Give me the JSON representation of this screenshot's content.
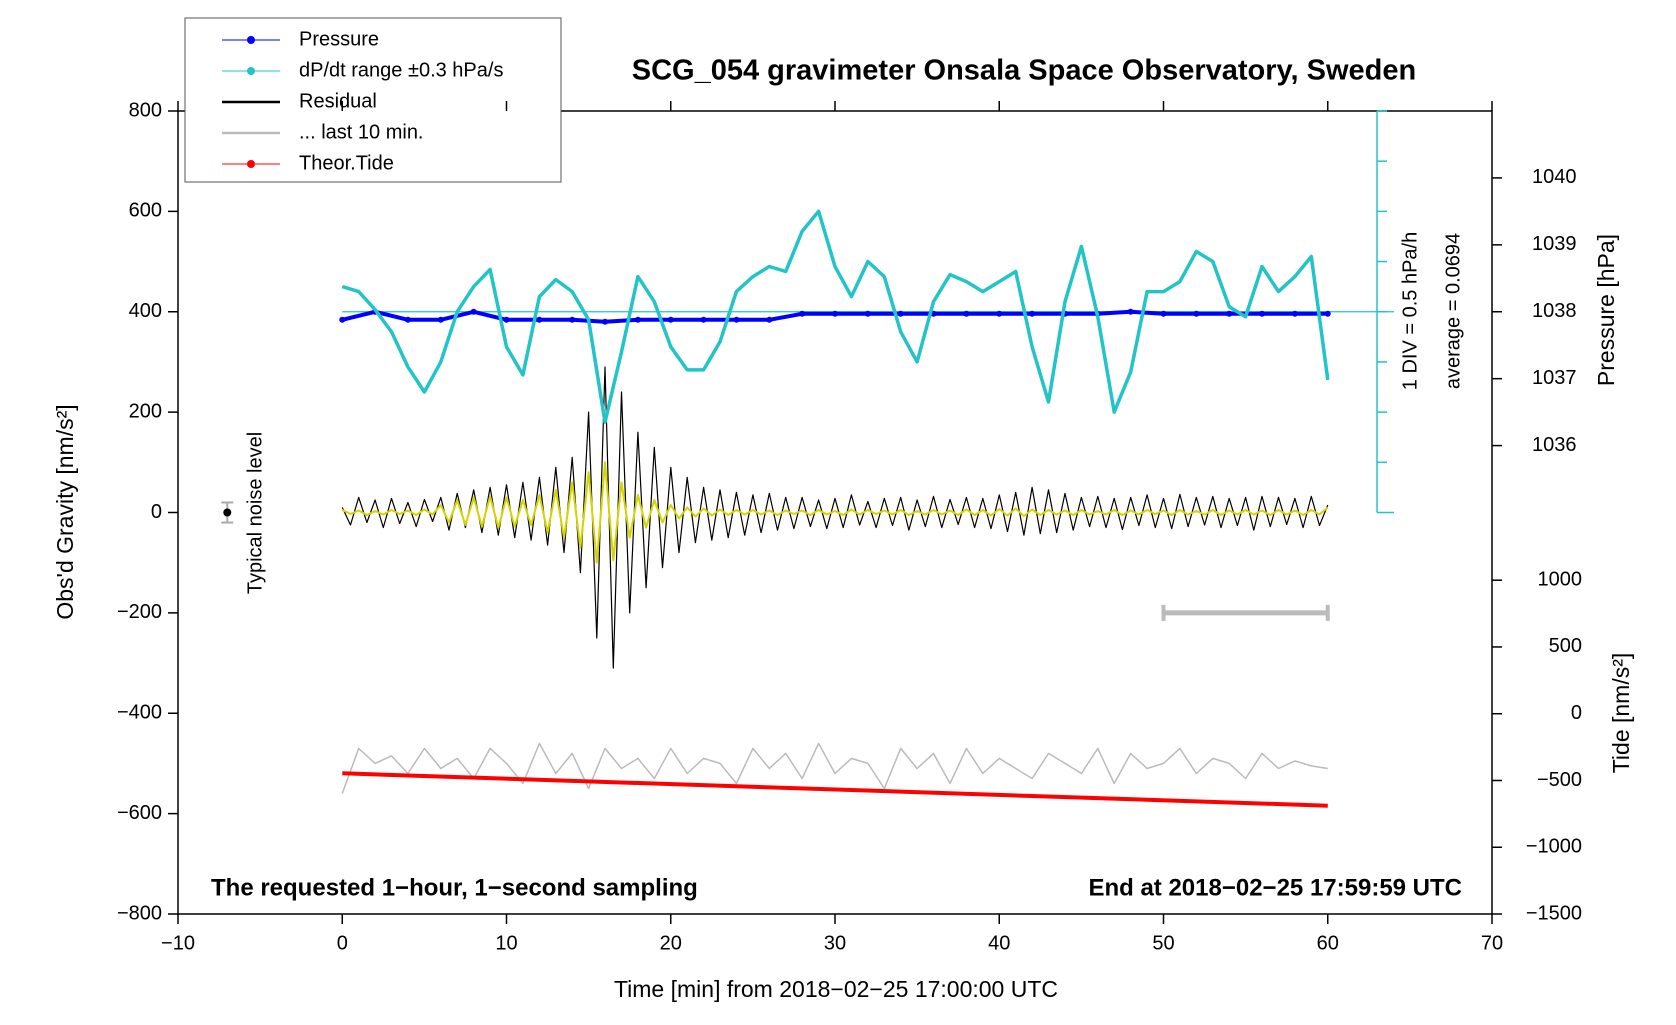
{
  "chart_data": {
    "type": "line",
    "title": "SCG_054 gravimeter Onsala Space Observatory, Sweden",
    "x_label": "Time [min] from 2018−02−25 17:00:00 UTC",
    "y_label": "Obs'd Gravity [nm/s²]",
    "y2_label": "Pressure [hPa]",
    "y3_label": "Tide [nm/s²]",
    "annotations": {
      "left": "The requested 1−hour, 1−second sampling",
      "right": "End at 2018−02−25 17:59:59 UTC",
      "div": "1 DIV = 0.5 hPa/h",
      "average": "average = 0.0694",
      "average_value": 0.0694,
      "y4_axis_x": 63,
      "noise": {
        "label": "Typical noise level",
        "x": -7,
        "y": 0,
        "error": 20
      },
      "last10_span": {
        "x": [
          50,
          60
        ],
        "y": -200
      }
    },
    "xlim": [
      -10,
      70
    ],
    "xticks": [
      {
        "value": -10,
        "label": "−10"
      },
      0,
      10,
      20,
      30,
      40,
      50,
      60,
      70
    ],
    "ylim": [
      -800,
      800
    ],
    "yticks": [
      {
        "value": -800,
        "label": "−800"
      },
      {
        "value": -600,
        "label": "−600"
      },
      {
        "value": -400,
        "label": "−400"
      },
      {
        "value": -200,
        "label": "−200"
      },
      0,
      200,
      400,
      600,
      800
    ],
    "y2lim": [
      1029,
      1041
    ],
    "y2ticks": [
      1036,
      1037,
      1038,
      1039,
      1040
    ],
    "y3lim": [
      -1500,
      4514
    ],
    "y3ticks": [
      {
        "value": -1500,
        "label": "−1500"
      },
      {
        "value": -1000,
        "label": "−1000"
      },
      {
        "value": -500,
        "label": "−500"
      },
      0,
      500,
      1000
    ],
    "y4lim": [
      -1.9306,
      2.0694
    ],
    "y4ticks": [
      -1.9306,
      -1.4306,
      -0.9306,
      -0.4306,
      0.0694,
      0.5694,
      1.0694,
      1.5694,
      2.0694
    ],
    "series": [
      {
        "name": "Pressure",
        "color": "#0000ff",
        "axis": "y2",
        "markers": true,
        "x": [
          0,
          2,
          4,
          6,
          8,
          10,
          12,
          14,
          16,
          18,
          20,
          22,
          24,
          26,
          28,
          30,
          32,
          34,
          36,
          38,
          40,
          42,
          44,
          46,
          48,
          50,
          52,
          54,
          56,
          58,
          60
        ],
        "values": [
          1037.88,
          1038.0,
          1037.88,
          1037.88,
          1038.0,
          1037.88,
          1037.88,
          1037.88,
          1037.85,
          1037.88,
          1037.88,
          1037.88,
          1037.88,
          1037.88,
          1037.97,
          1037.97,
          1037.97,
          1037.97,
          1037.97,
          1037.97,
          1037.97,
          1037.97,
          1037.97,
          1037.97,
          1038.0,
          1037.97,
          1037.97,
          1037.97,
          1037.97,
          1037.97,
          1037.97
        ]
      },
      {
        "name": "dP/dt range ±0.3 hPa/s",
        "color": "#22c4c8",
        "axis": "y4",
        "markers": false,
        "legend_marker": true,
        "x": [
          0,
          1,
          2,
          3,
          4,
          5,
          6,
          7,
          8,
          9,
          10,
          11,
          12,
          13,
          14,
          15,
          16,
          17,
          18,
          19,
          20,
          21,
          22,
          23,
          24,
          25,
          26,
          27,
          28,
          29,
          30,
          31,
          32,
          33,
          34,
          35,
          36,
          37,
          38,
          39,
          40,
          41,
          42,
          43,
          44,
          45,
          46,
          47,
          48,
          49,
          50,
          51,
          52,
          53,
          54,
          55,
          56,
          57,
          58,
          59,
          60
        ],
        "values": [
          0.32,
          0.27,
          0.09,
          -0.13,
          -0.48,
          -0.73,
          -0.43,
          0.07,
          0.32,
          0.49,
          -0.28,
          -0.56,
          0.22,
          0.39,
          0.27,
          -0.01,
          -1.03,
          -0.33,
          0.42,
          0.17,
          -0.28,
          -0.51,
          -0.51,
          -0.23,
          0.27,
          0.42,
          0.52,
          0.47,
          0.87,
          1.07,
          0.52,
          0.22,
          0.57,
          0.42,
          -0.13,
          -0.43,
          0.17,
          0.44,
          0.37,
          0.27,
          0.37,
          0.47,
          -0.28,
          -0.83,
          0.17,
          0.72,
          0.02,
          -0.93,
          -0.53,
          0.27,
          0.27,
          0.37,
          0.67,
          0.57,
          0.12,
          0.02,
          0.52,
          0.27,
          0.42,
          0.62,
          -0.61
        ]
      },
      {
        "name": "Residual",
        "color": "#000000",
        "axis": "y",
        "markers": false,
        "x": [
          0,
          0.5,
          1,
          1.5,
          2,
          2.5,
          3,
          3.5,
          4,
          4.5,
          5,
          5.5,
          6,
          6.5,
          7,
          7.5,
          8,
          8.5,
          9,
          9.5,
          10,
          10.5,
          11,
          11.5,
          12,
          12.5,
          13,
          13.5,
          14,
          14.5,
          15,
          15.5,
          16,
          16.5,
          17,
          17.5,
          18,
          18.5,
          19,
          19.5,
          20,
          20.5,
          21,
          21.5,
          22,
          22.5,
          23,
          23.5,
          24,
          24.5,
          25,
          25.5,
          26,
          26.5,
          27,
          27.5,
          28,
          28.5,
          29,
          29.5,
          30,
          30.5,
          31,
          31.5,
          32,
          32.5,
          33,
          33.5,
          34,
          34.5,
          35,
          35.5,
          36,
          36.5,
          37,
          37.5,
          38,
          38.5,
          39,
          39.5,
          40,
          40.5,
          41,
          41.5,
          42,
          42.5,
          43,
          43.5,
          44,
          44.5,
          45,
          45.5,
          46,
          46.5,
          47,
          47.5,
          48,
          48.5,
          49,
          49.5,
          50,
          50.5,
          51,
          51.5,
          52,
          52.5,
          53,
          53.5,
          54,
          54.5,
          55,
          55.5,
          56,
          56.5,
          57,
          57.5,
          58,
          58.5,
          59,
          59.5,
          60
        ],
        "values": [
          10,
          -25,
          30,
          -20,
          25,
          -30,
          28,
          -22,
          20,
          -28,
          26,
          -18,
          30,
          -35,
          38,
          -30,
          45,
          -40,
          50,
          -45,
          55,
          -50,
          60,
          -55,
          70,
          -65,
          90,
          -80,
          110,
          -120,
          200,
          -250,
          290,
          -310,
          240,
          -200,
          160,
          -150,
          130,
          -110,
          90,
          -80,
          70,
          -60,
          50,
          -55,
          45,
          -50,
          40,
          -45,
          35,
          -40,
          38,
          -35,
          30,
          -32,
          30,
          -28,
          25,
          -32,
          28,
          -30,
          35,
          -25,
          22,
          -30,
          28,
          -26,
          30,
          -35,
          25,
          -28,
          32,
          -30,
          26,
          -24,
          30,
          -30,
          28,
          -32,
          35,
          -38,
          40,
          -45,
          50,
          -42,
          45,
          -40,
          38,
          -35,
          30,
          -28,
          32,
          -30,
          28,
          -34,
          30,
          -26,
          35,
          -30,
          28,
          -32,
          36,
          -28,
          30,
          -25,
          32,
          -30,
          28,
          -26,
          30,
          -35,
          32,
          -28,
          30,
          -24,
          28,
          -30,
          32,
          -26,
          15
        ]
      },
      {
        "name": "... last 10 min.",
        "color": "#bbbbbb",
        "axis": "y",
        "markers": false,
        "x": [
          0,
          1,
          2,
          3,
          4,
          5,
          6,
          7,
          8,
          9,
          10,
          11,
          12,
          13,
          14,
          15,
          16,
          17,
          18,
          19,
          20,
          21,
          22,
          23,
          24,
          25,
          26,
          27,
          28,
          29,
          30,
          31,
          32,
          33,
          34,
          35,
          36,
          37,
          38,
          39,
          40,
          41,
          42,
          43,
          44,
          45,
          46,
          47,
          48,
          49,
          50,
          51,
          52,
          53,
          54,
          55,
          56,
          57,
          58,
          59,
          60
        ],
        "values": [
          -560,
          -470,
          -500,
          -485,
          -520,
          -470,
          -510,
          -490,
          -530,
          -470,
          -500,
          -540,
          -460,
          -520,
          -480,
          -550,
          -470,
          -510,
          -490,
          -530,
          -470,
          -520,
          -490,
          -500,
          -540,
          -470,
          -510,
          -480,
          -530,
          -460,
          -520,
          -490,
          -500,
          -550,
          -470,
          -510,
          -480,
          -540,
          -470,
          -520,
          -490,
          -510,
          -530,
          -480,
          -500,
          -520,
          -470,
          -540,
          -480,
          -510,
          -500,
          -470,
          -520,
          -490,
          -500,
          -530,
          -480,
          -510,
          -495,
          -505,
          -510
        ]
      },
      {
        "name": "Theor.Tide",
        "color": "#ff0000",
        "axis": "y3",
        "markers": false,
        "legend_marker": true,
        "x": [
          0,
          60
        ],
        "values": [
          -446,
          -689
        ]
      },
      {
        "color": "#d4d400",
        "axis": "y",
        "markers": false,
        "x": [
          0,
          0.5,
          1,
          1.5,
          2,
          2.5,
          3,
          3.5,
          4,
          4.5,
          5,
          5.5,
          6,
          6.5,
          7,
          7.5,
          8,
          8.5,
          9,
          9.5,
          10,
          10.5,
          11,
          11.5,
          12,
          12.5,
          13,
          13.5,
          14,
          14.5,
          15,
          15.5,
          16,
          16.5,
          17,
          17.5,
          18,
          18.5,
          19,
          19.5,
          20,
          20.5,
          21,
          21.5,
          22,
          22.5,
          23,
          23.5,
          24,
          24.5,
          25,
          25.5,
          26,
          26.5,
          27,
          27.5,
          28,
          28.5,
          29,
          29.5,
          30,
          30.5,
          31,
          31.5,
          32,
          32.5,
          33,
          33.5,
          34,
          34.5,
          35,
          35.5,
          36,
          36.5,
          37,
          37.5,
          38,
          38.5,
          39,
          39.5,
          40,
          40.5,
          41,
          41.5,
          42,
          42.5,
          43,
          43.5,
          44,
          44.5,
          45,
          45.5,
          46,
          46.5,
          47,
          47.5,
          48,
          48.5,
          49,
          49.5,
          50,
          50.5,
          51,
          51.5,
          52,
          52.5,
          53,
          53.5,
          54,
          54.5,
          55,
          55.5,
          56,
          56.5,
          57,
          57.5,
          58,
          58.5,
          59,
          59.5,
          60
        ],
        "values": [
          5,
          -3,
          4,
          -5,
          3,
          -4,
          5,
          -3,
          4,
          -5,
          6,
          -4,
          15,
          -20,
          25,
          -25,
          30,
          -28,
          32,
          -30,
          30,
          -28,
          25,
          -25,
          35,
          -40,
          45,
          -50,
          60,
          -70,
          80,
          -100,
          100,
          -95,
          60,
          -50,
          35,
          -30,
          25,
          -20,
          15,
          -12,
          10,
          -8,
          8,
          -6,
          6,
          -5,
          5,
          -4,
          5,
          -4,
          4,
          -5,
          4,
          -3,
          4,
          -5,
          5,
          -4,
          3,
          -5,
          6,
          -4,
          5,
          -3,
          4,
          -4,
          5,
          -5,
          3,
          -4,
          5,
          -4,
          4,
          -5,
          6,
          -5,
          5,
          -6,
          7,
          -6,
          8,
          -7,
          6,
          -5,
          5,
          -4,
          4,
          -5,
          5,
          -4,
          3,
          -4,
          5,
          -5,
          4,
          -4,
          5,
          -3,
          4,
          -5,
          5,
          -4,
          3,
          -4,
          5,
          -5,
          4,
          -4,
          5,
          -4,
          4,
          -5,
          5,
          -4,
          4,
          -5,
          5,
          -4,
          10
        ]
      }
    ]
  }
}
